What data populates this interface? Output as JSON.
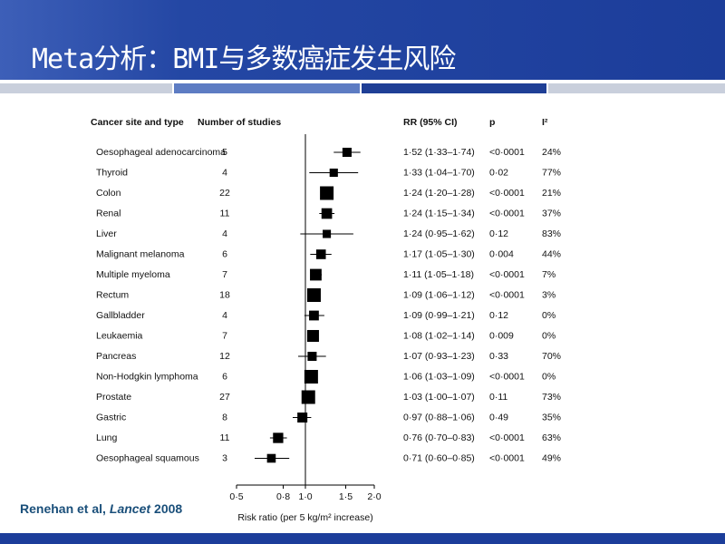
{
  "header": {
    "title": "Meta分析：BMI与多数癌症发生风险"
  },
  "citation": {
    "authors": "Renehan et al,",
    "journal": "Lancet",
    "year": "2008"
  },
  "chart_data": {
    "type": "forest",
    "columns": {
      "site": "Cancer site and type",
      "studies": "Number of studies",
      "rr": "RR (95% CI)",
      "p": "p",
      "i2": "I²"
    },
    "categories": [
      "Oesophageal adenocarcinoma",
      "Thyroid",
      "Colon",
      "Renal",
      "Liver",
      "Malignant melanoma",
      "Multiple myeloma",
      "Rectum",
      "Gallbladder",
      "Leukaemia",
      "Pancreas",
      "Non-Hodgkin lymphoma",
      "Prostate",
      "Gastric",
      "Lung",
      "Oesophageal squamous"
    ],
    "studies": [
      5,
      4,
      22,
      11,
      4,
      6,
      7,
      18,
      4,
      7,
      12,
      6,
      27,
      8,
      11,
      3
    ],
    "values": [
      1.52,
      1.33,
      1.24,
      1.24,
      1.24,
      1.17,
      1.11,
      1.09,
      1.09,
      1.08,
      1.07,
      1.06,
      1.03,
      0.97,
      0.76,
      0.71
    ],
    "lower": [
      1.33,
      1.04,
      1.2,
      1.15,
      0.95,
      1.05,
      1.05,
      1.06,
      0.99,
      1.02,
      0.93,
      1.03,
      1.0,
      0.88,
      0.7,
      0.6
    ],
    "upper": [
      1.74,
      1.7,
      1.28,
      1.34,
      1.62,
      1.3,
      1.18,
      1.12,
      1.21,
      1.14,
      1.23,
      1.09,
      1.07,
      1.06,
      0.83,
      0.85
    ],
    "value_labels": [
      "1·52 (1·33–1·74)",
      "1·33 (1·04–1·70)",
      "1·24 (1·20–1·28)",
      "1·24 (1·15–1·34)",
      "1·24 (0·95–1·62)",
      "1·17 (1·05–1·30)",
      "1·11 (1·05–1·18)",
      "1·09 (1·06–1·12)",
      "1·09 (0·99–1·21)",
      "1·08 (1·02–1·14)",
      "1·07 (0·93–1·23)",
      "1·06 (1·03–1·09)",
      "1·03 (1·00–1·07)",
      "0·97 (0·88–1·06)",
      "0·76 (0·70–0·83)",
      "0·71 (0·60–0·85)"
    ],
    "p_labels": [
      "<0·0001",
      "0·02",
      "<0·0001",
      "<0·0001",
      "0·12",
      "0·004",
      "<0·0001",
      "<0·0001",
      "0·12",
      "0·009",
      "0·33",
      "<0·0001",
      "0·11",
      "0·49",
      "<0·0001",
      "<0·0001"
    ],
    "i2_labels": [
      "24%",
      "77%",
      "21%",
      "37%",
      "83%",
      "44%",
      "7%",
      "3%",
      "0%",
      "0%",
      "70%",
      "0%",
      "73%",
      "35%",
      "63%",
      "49%"
    ],
    "xlim": [
      0.5,
      2.0
    ],
    "xlog": true,
    "reference_line": 1,
    "xticks": [
      {
        "value": 0.5,
        "label": "0·5"
      },
      {
        "value": 0.8,
        "label": "0·8"
      },
      {
        "value": 1.0,
        "label": "1·0"
      },
      {
        "value": 1.5,
        "label": "1·5"
      },
      {
        "value": 2.0,
        "label": "2·0"
      }
    ],
    "xlabel": "Risk ratio (per 5 kg/m² increase)",
    "color": "#000000"
  }
}
